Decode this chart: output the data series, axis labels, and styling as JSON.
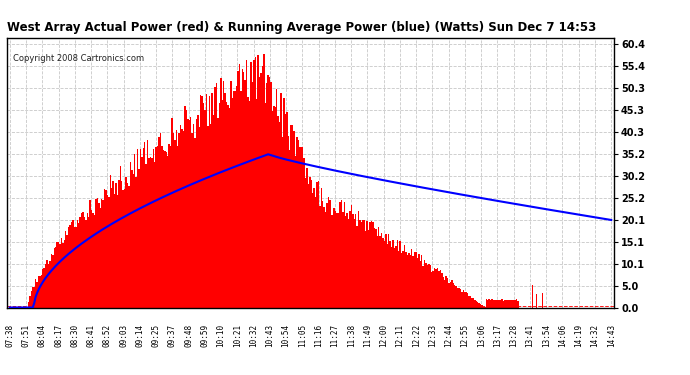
{
  "title": "West Array Actual Power (red) & Running Average Power (blue) (Watts) Sun Dec 7 14:53",
  "copyright": "Copyright 2008 Cartronics.com",
  "ylabel_right": [
    "60.4",
    "55.4",
    "50.3",
    "45.3",
    "40.3",
    "35.2",
    "30.2",
    "25.2",
    "20.1",
    "15.1",
    "10.1",
    "5.0",
    "0.0"
  ],
  "yticks_right": [
    60.4,
    55.4,
    50.3,
    45.3,
    40.3,
    35.2,
    30.2,
    25.2,
    20.1,
    15.1,
    10.1,
    5.0,
    0.0
  ],
  "ymax": 62.0,
  "ymin": 0.0,
  "bg_color": "#ffffff",
  "plot_bg": "#ffffff",
  "grid_color": "#c8c8c8",
  "bar_color": "#ff0000",
  "line_color": "#0000ff",
  "dashed_color": "#ff0000"
}
